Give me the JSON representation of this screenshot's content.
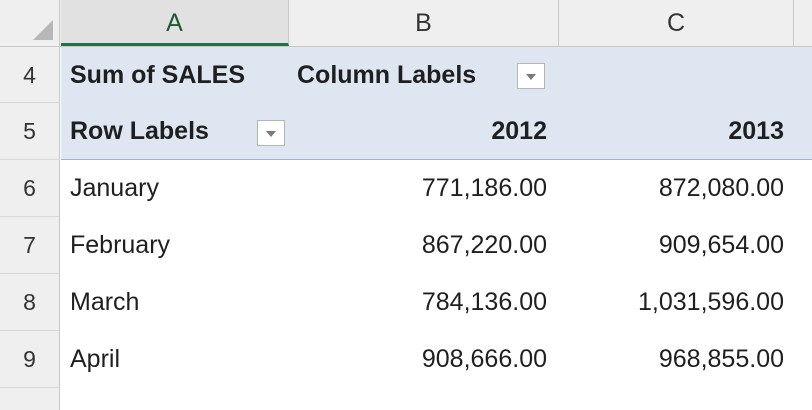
{
  "columns": {
    "a": "A",
    "b": "B",
    "c": "C"
  },
  "rows": {
    "r4": "4",
    "r5": "5",
    "r6": "6",
    "r7": "7",
    "r8": "8",
    "r9": "9"
  },
  "pivot": {
    "values_caption": "Sum of SALES",
    "column_labels": "Column Labels",
    "row_labels": "Row Labels",
    "years": [
      "2012",
      "2013"
    ],
    "data": [
      {
        "month": "January",
        "y2012": "771,186.00",
        "y2013": "872,080.00"
      },
      {
        "month": "February",
        "y2012": "867,220.00",
        "y2013": "909,654.00"
      },
      {
        "month": "March",
        "y2012": "784,136.00",
        "y2013": "1,031,596.00"
      },
      {
        "month": "April",
        "y2012": "908,666.00",
        "y2013": "968,855.00"
      }
    ]
  },
  "colors": {
    "header_band": "#dde6f1",
    "selected_col": "#217346"
  }
}
